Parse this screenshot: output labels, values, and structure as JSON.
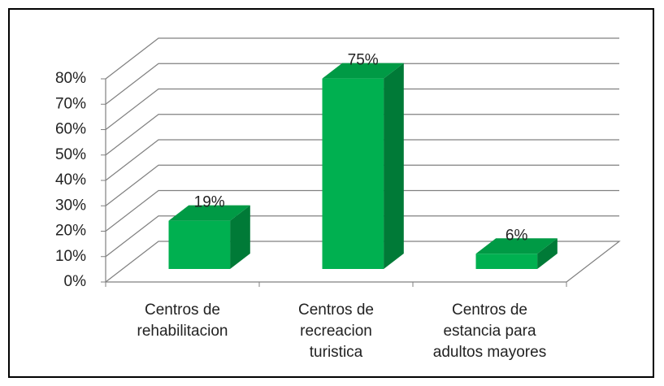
{
  "chart_data": {
    "type": "bar3d",
    "categories": [
      "Centros de rehabilitacion",
      "Centros de recreacion turistica",
      "Centros de estancia para adultos mayores"
    ],
    "values": [
      19,
      75,
      6
    ],
    "value_labels": [
      "19%",
      "75%",
      "6%"
    ],
    "color": "#00b050",
    "ylim": [
      0,
      80
    ],
    "yticks": [
      {
        "value": 0,
        "label": "0%"
      },
      {
        "value": 10,
        "label": "10%"
      },
      {
        "value": 20,
        "label": "20%"
      },
      {
        "value": 30,
        "label": "30%"
      },
      {
        "value": 40,
        "label": "40%"
      },
      {
        "value": 50,
        "label": "50%"
      },
      {
        "value": 60,
        "label": "60%"
      },
      {
        "value": 70,
        "label": "70%"
      },
      {
        "value": 80,
        "label": "80%"
      }
    ],
    "grid": true
  }
}
